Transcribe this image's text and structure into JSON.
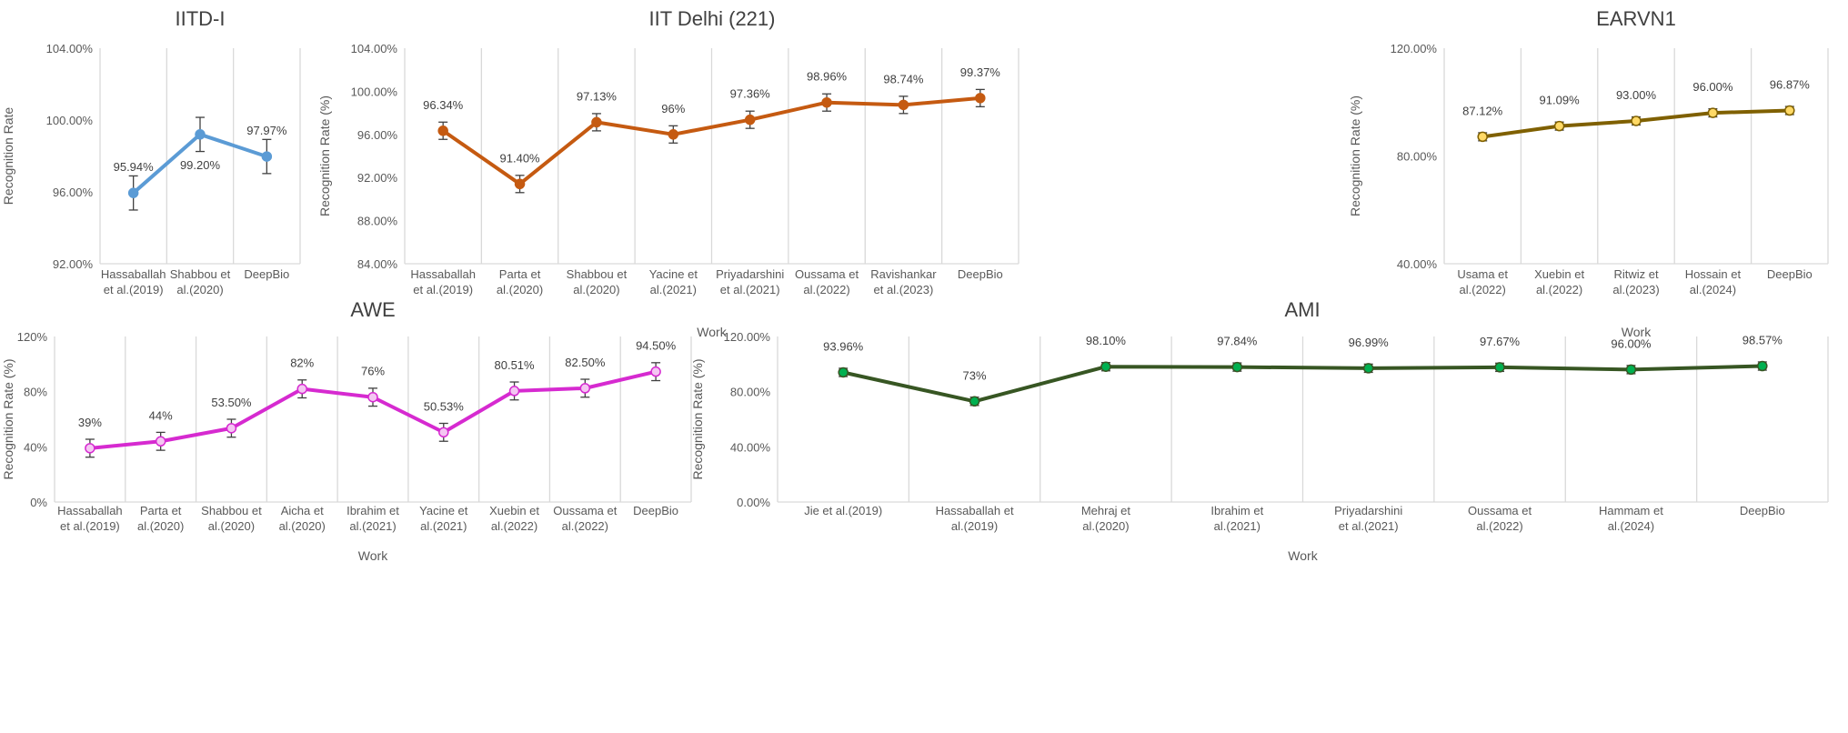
{
  "chart_data": [
    {
      "type": "line",
      "title": "IITD-I",
      "xlabel": "",
      "ylabel": "Recognition Rate",
      "ylim": [
        92,
        104
      ],
      "yticks": [
        92,
        96,
        100,
        104
      ],
      "ytick_labels": [
        "92.00%",
        "96.00%",
        "100.00%",
        "104.00%"
      ],
      "categories": [
        "Hassaballah\net al.(2019)",
        "Shabbou et\nal.(2020)",
        "DeepBio"
      ],
      "values": [
        95.94,
        99.2,
        97.97
      ],
      "data_labels": [
        "95.94%",
        "99.20%",
        "97.97%"
      ],
      "error": 0.95,
      "color": "#5B9BD5",
      "marker_fill": "#5B9BD5",
      "grid": "vertical"
    },
    {
      "type": "line",
      "title": "IIT Delhi (221)",
      "xlabel": "Work",
      "ylabel": "Recognition Rate (%)",
      "ylim": [
        84,
        104
      ],
      "yticks": [
        84,
        88,
        92,
        96,
        100,
        104
      ],
      "ytick_labels": [
        "84.00%",
        "88.00%",
        "92.00%",
        "96.00%",
        "100.00%",
        "104.00%"
      ],
      "categories": [
        "Hassaballah\net al.(2019)",
        "Parta et\nal.(2020)",
        "Shabbou et\nal.(2020)",
        "Yacine et\nal.(2021)",
        "Priyadarshini\net al.(2021)",
        "Oussama et\nal.(2022)",
        "Ravishankar\net al.(2023)",
        "DeepBio"
      ],
      "values": [
        96.34,
        91.4,
        97.13,
        96.0,
        97.36,
        98.96,
        98.74,
        99.37
      ],
      "data_labels": [
        "96.34%",
        "91.40%",
        "97.13%",
        "96%",
        "97.36%",
        "98.96%",
        "98.74%",
        "99.37%"
      ],
      "error": 0.8,
      "color": "#C55A11",
      "marker_fill": "#C55A11",
      "grid": "vertical"
    },
    {
      "type": "line",
      "title": "EARVN1",
      "xlabel": "Work",
      "ylabel": "Recognition Rate (%)",
      "ylim": [
        40,
        120
      ],
      "yticks": [
        40,
        80,
        120
      ],
      "ytick_labels": [
        "40.00%",
        "80.00%",
        "120.00%"
      ],
      "categories": [
        "Usama et\nal.(2022)",
        "Xuebin et\nal.(2022)",
        "Ritwiz et\nal.(2023)",
        "Hossain et\nal.(2024)",
        "DeepBio"
      ],
      "values": [
        87.12,
        91.09,
        93.0,
        96.0,
        96.87
      ],
      "data_labels": [
        "87.12%",
        "91.09%",
        "93.00%",
        "96.00%",
        "96.87%"
      ],
      "error": 1.5,
      "color": "#7F6000",
      "marker_fill": "#FFD966",
      "grid": "vertical"
    },
    {
      "type": "line",
      "title": "AWE",
      "xlabel": "Work",
      "ylabel": "Recognition Rate (%)",
      "ylim": [
        0,
        120
      ],
      "yticks": [
        0,
        40,
        80,
        120
      ],
      "ytick_labels": [
        "0%",
        "40%",
        "80%",
        "120%"
      ],
      "categories": [
        "Hassaballah\net al.(2019)",
        "Parta et\nal.(2020)",
        "Shabbou et\nal.(2020)",
        "Aicha et\nal.(2020)",
        "Ibrahim et\nal.(2021)",
        "Yacine et\nal.(2021)",
        "Xuebin et\nal.(2022)",
        "Oussama et\nal.(2022)",
        "DeepBio"
      ],
      "values": [
        39,
        44,
        53.5,
        82,
        76,
        50.53,
        80.51,
        82.5,
        94.5
      ],
      "data_labels": [
        "39%",
        "44%",
        "53.50%",
        "82%",
        "76%",
        "50.53%",
        "80.51%",
        "82.50%",
        "94.50%"
      ],
      "error": 6.5,
      "color": "#D62AD0",
      "marker_fill": "#F4C6F2",
      "grid": "vertical"
    },
    {
      "type": "line",
      "title": "AMI",
      "xlabel": "Work",
      "ylabel": "Recognition Rate (%)",
      "ylim": [
        0,
        120
      ],
      "yticks": [
        0,
        40,
        80,
        120
      ],
      "ytick_labels": [
        "0.00%",
        "40.00%",
        "80.00%",
        "120.00%"
      ],
      "categories": [
        "Jie et al.(2019)",
        "Hassaballah et\nal.(2019)",
        "Mehraj et\nal.(2020)",
        "Ibrahim et\nal.(2021)",
        "Priyadarshini\net al.(2021)",
        "Oussama et\nal.(2022)",
        "Hammam et\nal.(2024)",
        "DeepBio"
      ],
      "values": [
        93.96,
        73,
        98.1,
        97.84,
        96.99,
        97.67,
        96.0,
        98.57
      ],
      "data_labels": [
        "93.96%",
        "73%",
        "98.10%",
        "97.84%",
        "96.99%",
        "97.67%",
        "96.00%",
        "98.57%"
      ],
      "error": 3,
      "color": "#375623",
      "marker_fill": "#00B050",
      "grid": "vertical"
    }
  ]
}
